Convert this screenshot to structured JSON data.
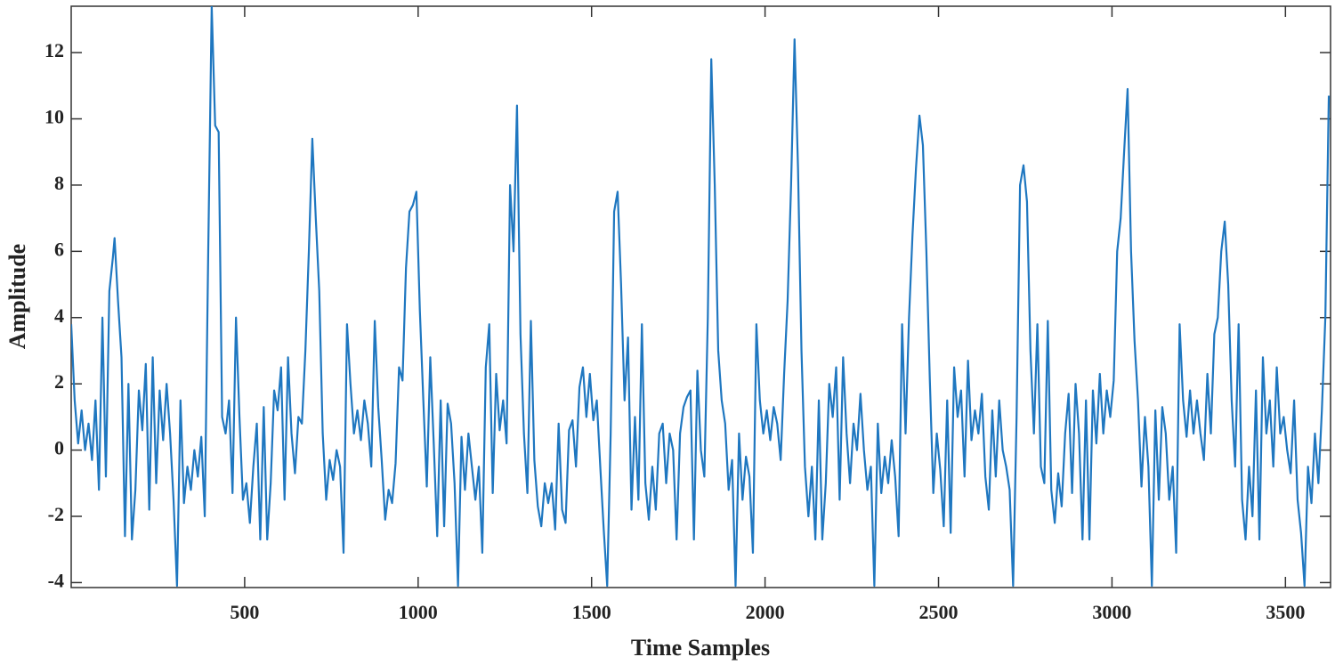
{
  "chart_data": {
    "type": "line",
    "xlabel": "Time Samples",
    "ylabel": "Amplitude",
    "color": "#1f77c0",
    "xlim": [
      0,
      3630
    ],
    "ylim": [
      -4.15,
      13.4
    ],
    "xticks": [
      500,
      1000,
      1500,
      2000,
      2500,
      3000,
      3500
    ],
    "yticks": [
      -4,
      -2,
      0,
      2,
      4,
      6,
      8,
      10,
      12
    ],
    "x": [
      0,
      10,
      20,
      30,
      40,
      50,
      60,
      70,
      80,
      90,
      100,
      110,
      120,
      125,
      135,
      145,
      155,
      165,
      175,
      185,
      195,
      205,
      215,
      225,
      235,
      245,
      255,
      265,
      275,
      285,
      295,
      305,
      315,
      325,
      335,
      345,
      355,
      365,
      375,
      385,
      395,
      405,
      415,
      425,
      435,
      445,
      455,
      465,
      475,
      485,
      495,
      505,
      515,
      525,
      535,
      545,
      555,
      565,
      575,
      585,
      595,
      605,
      615,
      625,
      635,
      645,
      655,
      665,
      675,
      685,
      695,
      705,
      715,
      725,
      735,
      745,
      755,
      765,
      775,
      785,
      795,
      805,
      815,
      825,
      835,
      845,
      855,
      865,
      875,
      885,
      895,
      905,
      915,
      925,
      935,
      945,
      955,
      965,
      975,
      985,
      995,
      1005,
      1015,
      1025,
      1035,
      1045,
      1055,
      1065,
      1075,
      1085,
      1095,
      1105,
      1115,
      1125,
      1135,
      1145,
      1155,
      1165,
      1175,
      1185,
      1195,
      1205,
      1215,
      1225,
      1235,
      1245,
      1255,
      1265,
      1275,
      1285,
      1295,
      1305,
      1315,
      1325,
      1335,
      1345,
      1355,
      1365,
      1375,
      1385,
      1395,
      1405,
      1415,
      1425,
      1435,
      1445,
      1455,
      1465,
      1475,
      1485,
      1495,
      1505,
      1515,
      1525,
      1535,
      1545,
      1555,
      1565,
      1575,
      1585,
      1595,
      1605,
      1615,
      1625,
      1635,
      1645,
      1655,
      1665,
      1675,
      1685,
      1695,
      1705,
      1715,
      1725,
      1735,
      1745,
      1755,
      1765,
      1775,
      1785,
      1795,
      1805,
      1815,
      1825,
      1835,
      1845,
      1855,
      1865,
      1875,
      1885,
      1895,
      1905,
      1915,
      1925,
      1935,
      1945,
      1955,
      1965,
      1975,
      1985,
      1995,
      2005,
      2015,
      2025,
      2035,
      2045,
      2055,
      2065,
      2075,
      2085,
      2095,
      2105,
      2115,
      2125,
      2135,
      2145,
      2155,
      2165,
      2175,
      2185,
      2195,
      2205,
      2215,
      2225,
      2235,
      2245,
      2255,
      2265,
      2275,
      2285,
      2295,
      2305,
      2315,
      2325,
      2335,
      2345,
      2355,
      2365,
      2375,
      2385,
      2395,
      2405,
      2415,
      2425,
      2435,
      2445,
      2455,
      2465,
      2475,
      2485,
      2495,
      2505,
      2515,
      2525,
      2535,
      2545,
      2555,
      2565,
      2575,
      2585,
      2595,
      2605,
      2615,
      2625,
      2635,
      2645,
      2655,
      2665,
      2675,
      2685,
      2695,
      2705,
      2715,
      2725,
      2735,
      2745,
      2755,
      2765,
      2775,
      2785,
      2795,
      2805,
      2815,
      2825,
      2835,
      2845,
      2855,
      2865,
      2875,
      2885,
      2895,
      2905,
      2915,
      2925,
      2935,
      2945,
      2955,
      2965,
      2975,
      2985,
      2995,
      3005,
      3015,
      3025,
      3035,
      3045,
      3055,
      3065,
      3075,
      3085,
      3095,
      3105,
      3115,
      3125,
      3135,
      3145,
      3155,
      3165,
      3175,
      3185,
      3195,
      3205,
      3215,
      3225,
      3235,
      3245,
      3255,
      3265,
      3275,
      3285,
      3295,
      3305,
      3315,
      3325,
      3335,
      3345,
      3355,
      3365,
      3375,
      3385,
      3395,
      3405,
      3415,
      3425,
      3435,
      3445,
      3455,
      3465,
      3475,
      3485,
      3495,
      3505,
      3515,
      3525,
      3535,
      3545,
      3555,
      3565,
      3575,
      3585,
      3595,
      3605,
      3615,
      3625
    ],
    "values": [
      3.8,
      1.5,
      0.2,
      1.2,
      0,
      0.8,
      -0.3,
      1.5,
      -1.2,
      4,
      -0.8,
      4.8,
      5.8,
      6.4,
      4.5,
      2.8,
      -2.6,
      2,
      -2.7,
      -1.2,
      1.8,
      0.6,
      2.6,
      -1.8,
      2.8,
      -1,
      1.8,
      0.3,
      2,
      0.5,
      -1.5,
      -4.1,
      1.5,
      -1.6,
      -0.5,
      -1.2,
      0,
      -0.8,
      0.4,
      -2,
      6,
      13.4,
      9.8,
      9.6,
      1,
      0.5,
      1.5,
      -1.3,
      4,
      1,
      -1.5,
      -1,
      -2.2,
      -0.5,
      0.8,
      -2.7,
      1.3,
      -2.7,
      -1,
      1.8,
      1.2,
      2.5,
      -1.5,
      2.8,
      0.5,
      -0.7,
      1,
      0.8,
      3,
      6,
      9.4,
      7,
      4.8,
      0.5,
      -1.5,
      -0.3,
      -0.9,
      0,
      -0.5,
      -3.1,
      3.8,
      2,
      0.5,
      1.2,
      0.3,
      1.5,
      0.8,
      -0.5,
      3.9,
      1.3,
      -0.3,
      -2.1,
      -1.2,
      -1.6,
      -0.4,
      2.5,
      2.1,
      5.5,
      7.2,
      7.4,
      7.8,
      4.2,
      1.5,
      -1.1,
      2.8,
      0.2,
      -2.6,
      1.5,
      -2.3,
      1.4,
      0.8,
      -1,
      -4.1,
      0.4,
      -1.2,
      0.5,
      -0.5,
      -1.5,
      -0.5,
      -3.1,
      2.5,
      3.8,
      -1.3,
      2.3,
      0.6,
      1.5,
      0.2,
      8,
      6,
      10.4,
      3.5,
      0.5,
      -1.3,
      3.9,
      -0.3,
      -1.7,
      -2.3,
      -1,
      -1.6,
      -1,
      -2.4,
      0.8,
      -1.8,
      -2.2,
      0.6,
      0.9,
      -0.5,
      1.9,
      2.5,
      1,
      2.3,
      0.9,
      1.5,
      -0.5,
      -2.4,
      -4.1,
      0.5,
      7.2,
      7.8,
      5,
      1.5,
      3.4,
      -1.8,
      1,
      -1.5,
      3.8,
      -1,
      -2.1,
      -0.5,
      -1.8,
      0.5,
      0.8,
      -1,
      0.5,
      0,
      -2.7,
      0.5,
      1.3,
      1.6,
      1.8,
      -2.7,
      2.4,
      0,
      -0.8,
      4,
      11.8,
      8,
      3,
      1.5,
      0.8,
      -1.2,
      -0.3,
      -4.1,
      0.5,
      -1.5,
      -0.2,
      -0.8,
      -3.1,
      3.8,
      1.5,
      0.5,
      1.2,
      0.3,
      1.3,
      0.8,
      -0.3,
      2.3,
      4.5,
      8,
      12.4,
      8.5,
      3,
      -0.5,
      -2,
      -0.5,
      -2.7,
      1.5,
      -2.7,
      -1,
      2,
      1,
      2.5,
      -1.5,
      2.8,
      0.5,
      -1,
      0.8,
      0,
      1.7,
      0,
      -1.2,
      -0.5,
      -4.1,
      0.8,
      -1.3,
      -0.2,
      -1,
      0.3,
      -0.8,
      -2.6,
      3.8,
      0.5,
      4,
      6.5,
      8.5,
      10.1,
      9.2,
      6,
      2.1,
      -1.3,
      0.5,
      -0.6,
      -2.3,
      1.5,
      -2.5,
      2.5,
      1,
      1.8,
      -0.8,
      2.7,
      0.3,
      1.2,
      0.5,
      1.7,
      -0.8,
      -1.8,
      1.2,
      -0.8,
      1.5,
      0,
      -0.5,
      -1.2,
      -4.1,
      1,
      8,
      8.6,
      7.5,
      3,
      0.5,
      3.8,
      -0.5,
      -1,
      3.9,
      -1.2,
      -2.2,
      -0.7,
      -1.7,
      0.5,
      1.7,
      -1.3,
      2,
      0.5,
      -2.7,
      1.5,
      -2.7,
      1.8,
      0.2,
      2.3,
      0.5,
      1.8,
      1,
      2.1,
      6,
      7,
      9,
      10.9,
      6,
      3.3,
      1.5,
      -1.1,
      1,
      -0.5,
      -4.1,
      1.2,
      -1.5,
      1.3,
      0.5,
      -1.5,
      -0.5,
      -3.1,
      3.8,
      1.5,
      0.4,
      1.8,
      0.5,
      1.5,
      0.5,
      -0.3,
      2.3,
      0.5,
      3.5,
      4,
      6,
      6.9,
      5,
      1.5,
      -0.5,
      3.8,
      -1.5,
      -2.7,
      -0.5,
      -2,
      1.8,
      -2.7,
      2.8,
      0.5,
      1.5,
      -0.5,
      2.5,
      0.5,
      1,
      0,
      -0.7,
      1.5,
      -1.5,
      -2.5,
      -4.1,
      -0.5,
      -1.6,
      0.5,
      -1,
      1.2,
      4,
      10.7
    ]
  }
}
